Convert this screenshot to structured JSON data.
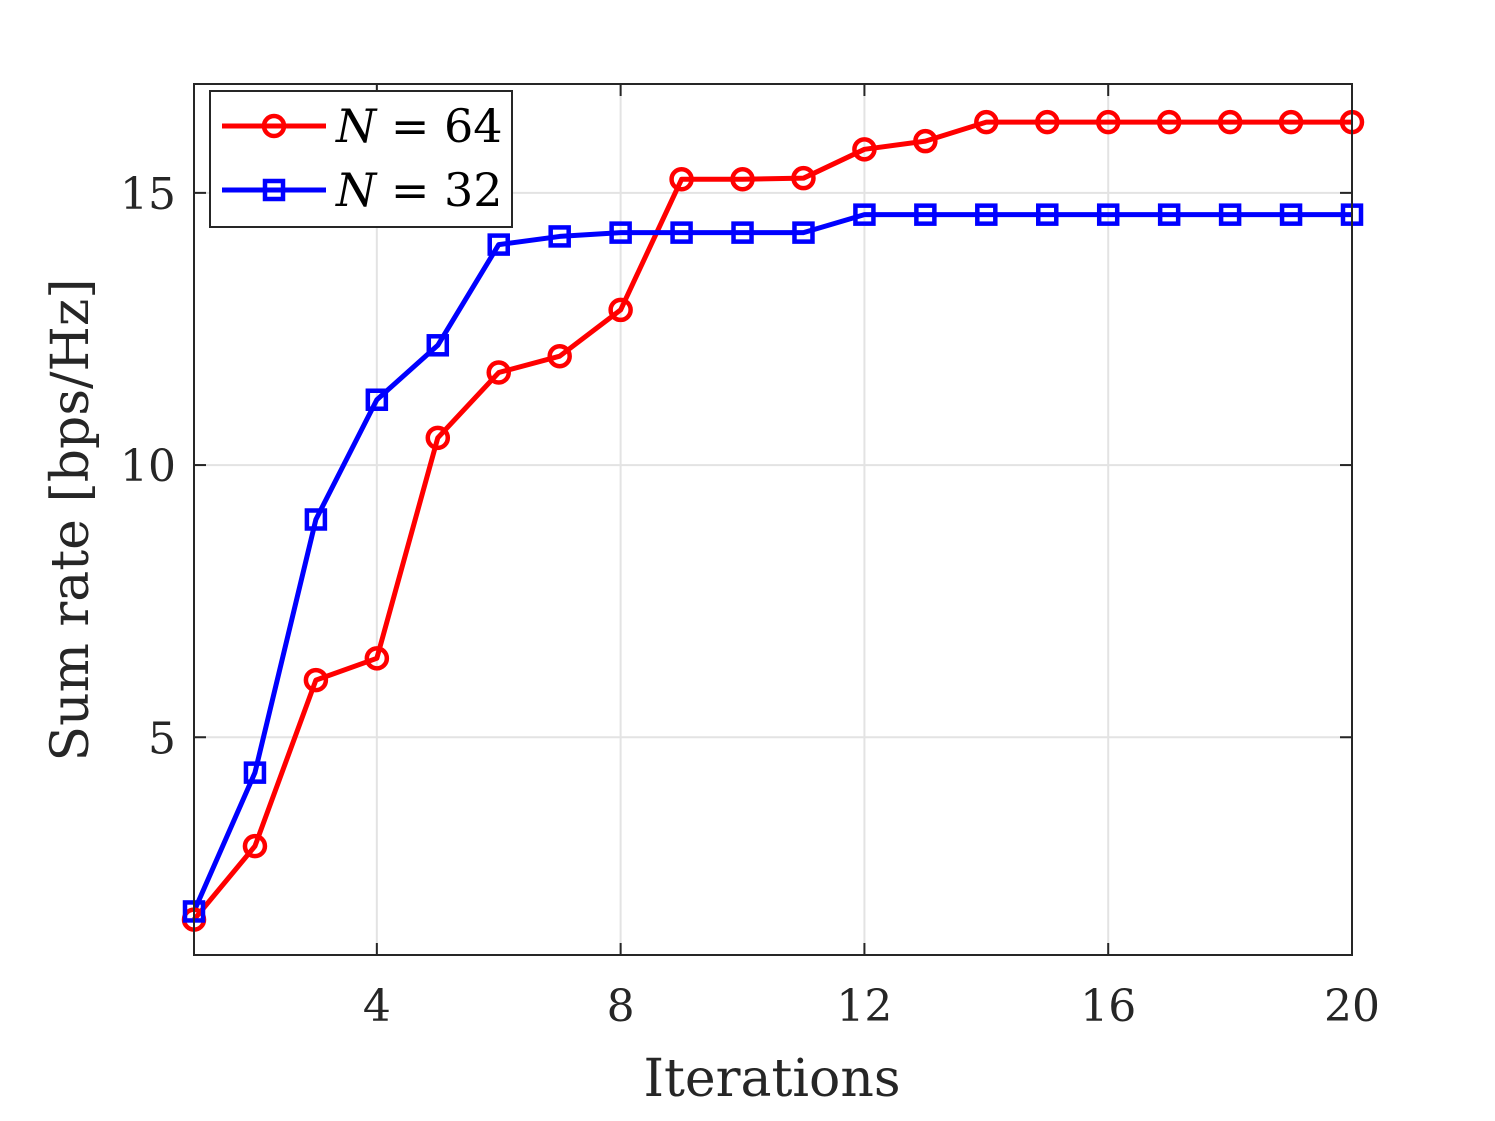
{
  "chart_data": {
    "type": "line",
    "title": "",
    "xlabel": "Iterations",
    "ylabel": "Sum rate [bps/Hz]",
    "xlim": [
      1,
      20
    ],
    "ylim": [
      1,
      17
    ],
    "xticks": [
      4,
      8,
      12,
      16,
      20
    ],
    "yticks": [
      5,
      10,
      15
    ],
    "grid": true,
    "legend_position": "top-left",
    "x": [
      1,
      2,
      3,
      4,
      5,
      6,
      7,
      8,
      9,
      10,
      11,
      12,
      13,
      14,
      15,
      16,
      17,
      18,
      19,
      20
    ],
    "series": [
      {
        "name": "N = 64",
        "legend_var": "N",
        "legend_value": "= 64",
        "color": "#ff0000",
        "marker": "circle",
        "values": [
          1.65,
          3.0,
          6.05,
          6.45,
          10.5,
          11.7,
          12.0,
          12.85,
          15.25,
          15.25,
          15.27,
          15.8,
          15.95,
          16.3,
          16.3,
          16.3,
          16.3,
          16.3,
          16.3,
          16.3
        ]
      },
      {
        "name": "N = 32",
        "legend_var": "N",
        "legend_value": "= 32",
        "color": "#0000ff",
        "marker": "square",
        "values": [
          1.8,
          4.35,
          9.0,
          11.2,
          12.2,
          14.05,
          14.2,
          14.27,
          14.27,
          14.27,
          14.27,
          14.6,
          14.6,
          14.6,
          14.6,
          14.6,
          14.6,
          14.6,
          14.6,
          14.6
        ]
      }
    ]
  }
}
